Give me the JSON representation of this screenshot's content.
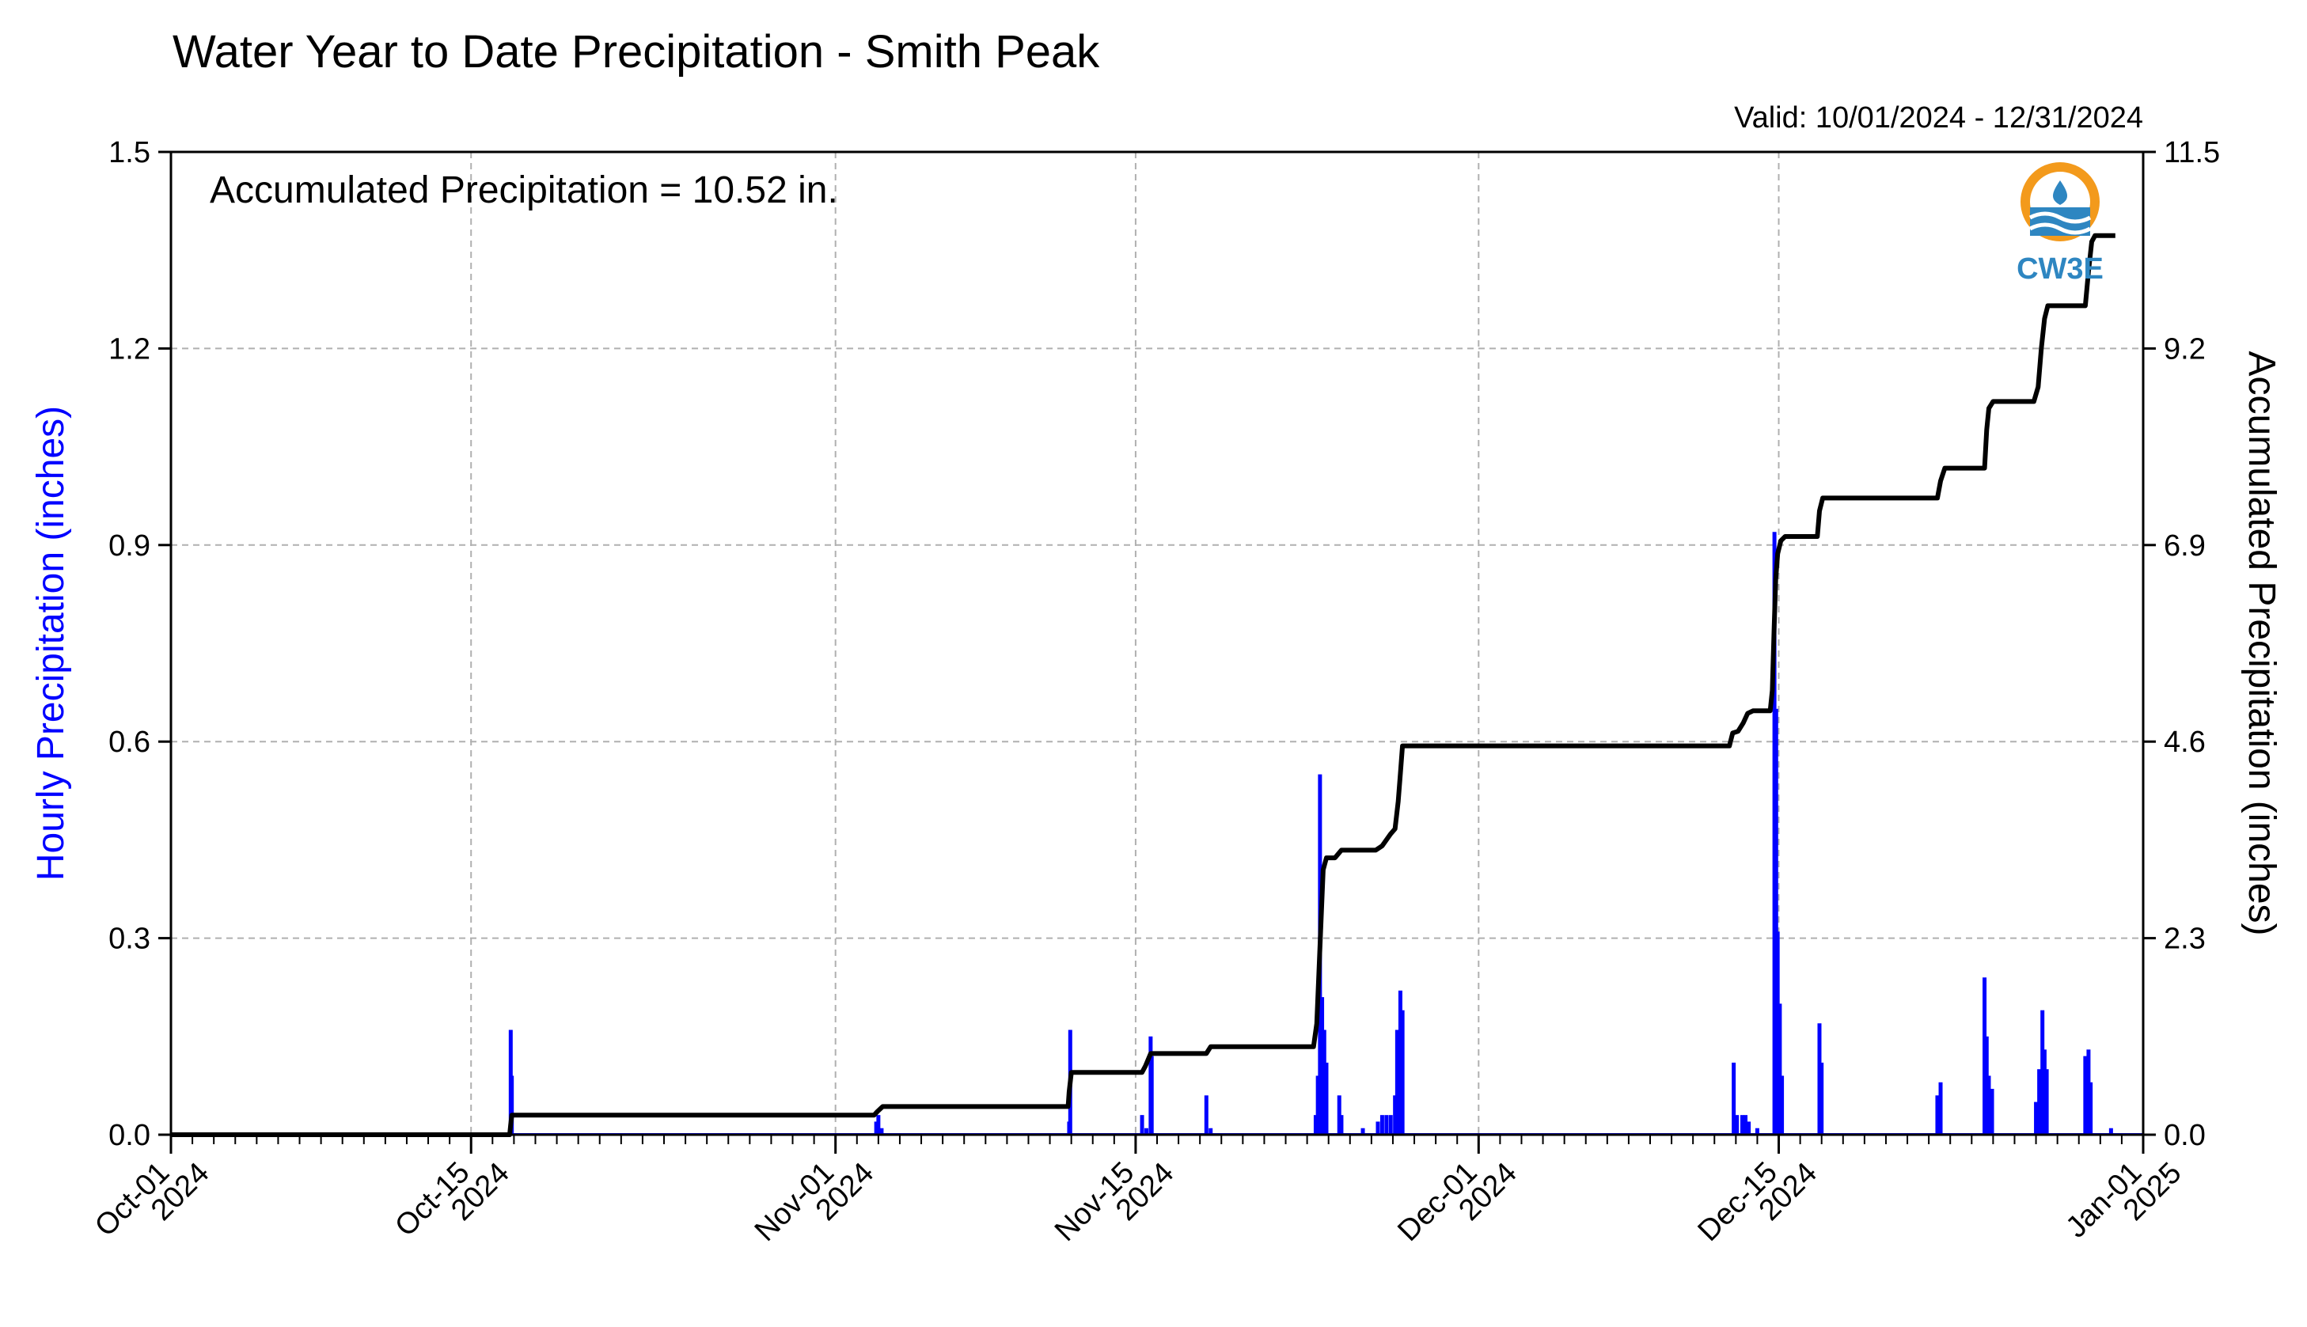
{
  "chart_data": {
    "type": "bar+line",
    "title": "Water Year to Date Precipitation - Smith Peak",
    "subtitle": "Valid: 10/01/2024 - 12/31/2024",
    "annotation": "Accumulated Precipitation = 10.52 in.",
    "logo_text": "CW3E",
    "ylabel_left": "Hourly Precipitation (inches)",
    "ylabel_right": "Accumulated Precipitation (inches)",
    "colors": {
      "bars": "#0000ff",
      "line": "#000000",
      "grid": "#b0b0b0",
      "logo_orange": "#f39a1c",
      "logo_blue": "#2e86c1"
    },
    "ylim_left": [
      0,
      1.5
    ],
    "ylim_right": [
      0,
      11.5
    ],
    "yticks_left": [
      "0.0",
      "0.3",
      "0.6",
      "0.9",
      "1.2",
      "1.5"
    ],
    "yticks_right": [
      "0.0",
      "2.3",
      "4.6",
      "6.9",
      "9.2",
      "11.5"
    ],
    "xlim_days": [
      0,
      92
    ],
    "xticks": [
      {
        "day": 0,
        "line1": "Oct-01",
        "line2": "2024"
      },
      {
        "day": 14,
        "line1": "Oct-15",
        "line2": "2024"
      },
      {
        "day": 31,
        "line1": "Nov-01",
        "line2": "2024"
      },
      {
        "day": 45,
        "line1": "Nov-15",
        "line2": "2024"
      },
      {
        "day": 61,
        "line1": "Dec-01",
        "line2": "2024"
      },
      {
        "day": 75,
        "line1": "Dec-15",
        "line2": "2024"
      },
      {
        "day": 92,
        "line1": "Jan-01",
        "line2": "2025"
      }
    ],
    "grid": true,
    "hourly_bars": [
      [
        15.85,
        0.16
      ],
      [
        15.9,
        0.09
      ],
      [
        32.9,
        0.02
      ],
      [
        33.0,
        0.03
      ],
      [
        33.15,
        0.01
      ],
      [
        41.9,
        0.02
      ],
      [
        41.95,
        0.16
      ],
      [
        45.3,
        0.03
      ],
      [
        45.5,
        0.01
      ],
      [
        45.7,
        0.15
      ],
      [
        45.75,
        0.12
      ],
      [
        48.3,
        0.06
      ],
      [
        48.5,
        0.01
      ],
      [
        53.4,
        0.03
      ],
      [
        53.5,
        0.09
      ],
      [
        53.6,
        0.55
      ],
      [
        53.7,
        0.21
      ],
      [
        53.8,
        0.16
      ],
      [
        53.9,
        0.11
      ],
      [
        54.5,
        0.06
      ],
      [
        54.6,
        0.03
      ],
      [
        55.6,
        0.01
      ],
      [
        56.3,
        0.02
      ],
      [
        56.5,
        0.03
      ],
      [
        56.7,
        0.03
      ],
      [
        56.9,
        0.03
      ],
      [
        57.1,
        0.06
      ],
      [
        57.2,
        0.16
      ],
      [
        57.35,
        0.22
      ],
      [
        57.45,
        0.19
      ],
      [
        72.9,
        0.11
      ],
      [
        73.05,
        0.03
      ],
      [
        73.3,
        0.03
      ],
      [
        73.45,
        0.03
      ],
      [
        73.6,
        0.02
      ],
      [
        74.0,
        0.01
      ],
      [
        74.8,
        0.92
      ],
      [
        74.88,
        0.65
      ],
      [
        74.95,
        0.31
      ],
      [
        75.05,
        0.2
      ],
      [
        75.15,
        0.09
      ],
      [
        76.9,
        0.17
      ],
      [
        77.0,
        0.11
      ],
      [
        82.4,
        0.06
      ],
      [
        82.55,
        0.08
      ],
      [
        84.6,
        0.24
      ],
      [
        84.7,
        0.15
      ],
      [
        84.8,
        0.09
      ],
      [
        84.95,
        0.07
      ],
      [
        87.0,
        0.05
      ],
      [
        87.15,
        0.1
      ],
      [
        87.3,
        0.19
      ],
      [
        87.4,
        0.13
      ],
      [
        87.5,
        0.1
      ],
      [
        89.3,
        0.12
      ],
      [
        89.45,
        0.13
      ],
      [
        89.55,
        0.08
      ],
      [
        90.5,
        0.01
      ]
    ],
    "accumulated": [
      [
        0,
        0
      ],
      [
        15.8,
        0
      ],
      [
        15.85,
        0.12
      ],
      [
        15.9,
        0.23
      ],
      [
        32.8,
        0.23
      ],
      [
        32.95,
        0.27
      ],
      [
        33.2,
        0.33
      ],
      [
        41.85,
        0.33
      ],
      [
        41.9,
        0.5
      ],
      [
        42.0,
        0.73
      ],
      [
        45.3,
        0.73
      ],
      [
        45.45,
        0.8
      ],
      [
        45.7,
        0.95
      ],
      [
        48.3,
        0.95
      ],
      [
        48.5,
        1.03
      ],
      [
        53.3,
        1.03
      ],
      [
        53.45,
        1.3
      ],
      [
        53.55,
        1.9
      ],
      [
        53.65,
        2.5
      ],
      [
        53.75,
        3.1
      ],
      [
        53.9,
        3.24
      ],
      [
        54.3,
        3.24
      ],
      [
        54.6,
        3.33
      ],
      [
        56.2,
        3.33
      ],
      [
        56.5,
        3.38
      ],
      [
        56.9,
        3.52
      ],
      [
        57.1,
        3.58
      ],
      [
        57.25,
        3.9
      ],
      [
        57.35,
        4.22
      ],
      [
        57.45,
        4.55
      ],
      [
        72.7,
        4.55
      ],
      [
        72.85,
        4.7
      ],
      [
        73.1,
        4.72
      ],
      [
        73.35,
        4.82
      ],
      [
        73.55,
        4.93
      ],
      [
        73.8,
        4.96
      ],
      [
        74.6,
        4.96
      ],
      [
        74.7,
        5.2
      ],
      [
        74.78,
        5.9
      ],
      [
        74.86,
        6.5
      ],
      [
        74.95,
        6.8
      ],
      [
        75.1,
        6.95
      ],
      [
        75.3,
        7.0
      ],
      [
        76.8,
        7.0
      ],
      [
        76.9,
        7.3
      ],
      [
        77.05,
        7.45
      ],
      [
        82.4,
        7.45
      ],
      [
        82.55,
        7.65
      ],
      [
        82.75,
        7.8
      ],
      [
        84.6,
        7.8
      ],
      [
        84.7,
        8.25
      ],
      [
        84.8,
        8.5
      ],
      [
        85.0,
        8.58
      ],
      [
        86.9,
        8.58
      ],
      [
        87.1,
        8.75
      ],
      [
        87.25,
        9.2
      ],
      [
        87.4,
        9.55
      ],
      [
        87.55,
        9.7
      ],
      [
        89.3,
        9.7
      ],
      [
        89.45,
        10.1
      ],
      [
        89.6,
        10.45
      ],
      [
        89.75,
        10.52
      ],
      [
        90.7,
        10.52
      ]
    ]
  }
}
